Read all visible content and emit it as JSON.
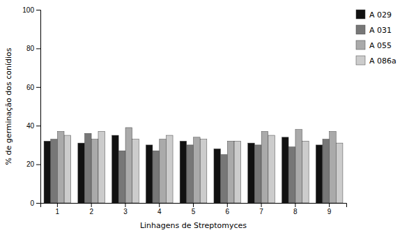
{
  "chart_data": {
    "type": "bar",
    "categories": [
      "1",
      "2",
      "3",
      "4",
      "5",
      "6",
      "7",
      "8",
      "9"
    ],
    "series": [
      {
        "name": "A 029",
        "color": "#111111",
        "values": [
          32,
          31,
          35,
          30,
          32,
          28,
          31,
          34,
          30
        ]
      },
      {
        "name": "A 031",
        "color": "#777777",
        "values": [
          33,
          36,
          27,
          27,
          30,
          25,
          30,
          29,
          33
        ]
      },
      {
        "name": "A 055",
        "color": "#aaaaaa",
        "values": [
          37,
          33,
          39,
          33,
          34,
          32,
          37,
          38,
          37
        ]
      },
      {
        "name": "A 086a",
        "color": "#cccccc",
        "values": [
          35,
          37,
          33,
          35,
          33,
          32,
          35,
          32,
          31
        ]
      }
    ],
    "ylim": [
      0,
      100
    ],
    "yticks": [
      0,
      20,
      40,
      60,
      80,
      100
    ],
    "ylabel": "% de germinação dos conídios",
    "xlabel": "Linhagens de Streptomyces",
    "grid": false,
    "legend": "right"
  }
}
